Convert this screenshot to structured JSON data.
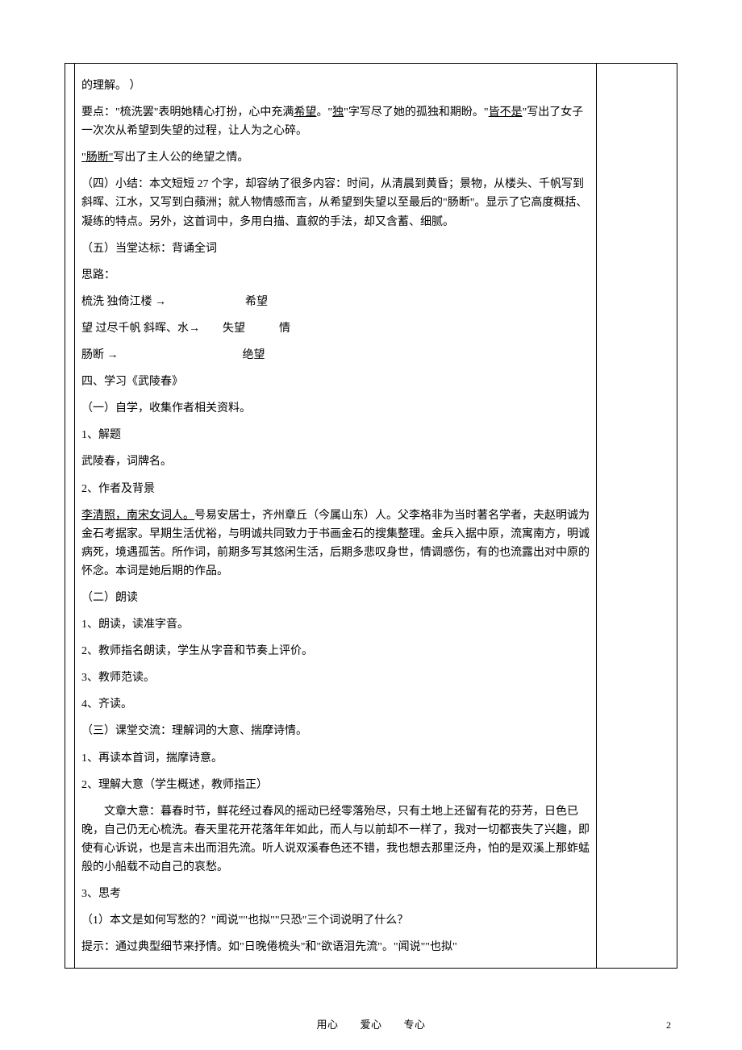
{
  "paragraphs": {
    "p01": "的理解。 ）",
    "p02_a": "要点：\"梳洗罢\"表明她精心打扮，心中充满",
    "p02_u1": "希望",
    "p02_b": "。\"",
    "p02_u2": "独",
    "p02_c": "\"字写尽了她的孤独和期盼。\"",
    "p02_u3": "皆不是",
    "p02_d": "\"写出了女子一次次从希望到失望的过程，让人为之心碎。",
    "p03_u": "\"肠断\"",
    "p03_b": "写出了主人公的绝望之情。",
    "p04": "（四）小结：本文短短 27 个字，却容纳了很多内容：时间，从清晨到黄昏；景物，从楼头、千帆写到斜晖、江水，又写到白蘋洲；就人物情感而言，从希望到失望以至最后的\"肠断\"。显示了它高度概括、凝练的特点。另外，这首词中，多用白描、直叙的手法，却又含蓄、细腻。",
    "p05": "（五）当堂达标：背诵全词",
    "p06": "思路：",
    "p07": "梳洗 独倚江楼 →       希望",
    "p08": "望 过尽千帆 斜晖、水→  失望   情",
    "p09": "肠断 →           绝望",
    "p10": "四、学习《武陵春》",
    "p11": "（一）自学，收集作者相关资料。",
    "p12": "1、解题",
    "p13": "武陵春，词牌名。",
    "p14": "2、作者及背景",
    "p15_u": "李清照，南宋女词人。",
    "p15_b": "号易安居士，齐州章丘（今属山东）人。父李格非为当时著名学者，夫赵明诚为金石考据家。早期生活优裕，与明诚共同致力于书画金石的搜集整理。金兵入据中原，流寓南方，明诚病死，境遇孤苦。所作词，前期多写其悠闲生活，后期多悲叹身世，情调感伤，有的也流露出对中原的怀念。本词是她后期的作品。",
    "p16": "（二）朗读",
    "p17": "1、朗读，读准字音。",
    "p18": "2、教师指名朗读，学生从字音和节奏上评价。",
    "p19": "3、教师范读。",
    "p20": "4、齐读。",
    "p21": "（三）课堂交流：理解词的大意、揣摩诗情。",
    "p22": "1、再读本首词，揣摩诗意。",
    "p23": "2、理解大意（学生概述，教师指正）",
    "p24": "文章大意：暮春时节，鲜花经过春风的摇动已经零落殆尽，只有土地上还留有花的芬芳，日色已晚，自己仍无心梳洗。春天里花开花落年年如此，而人与以前却不一样了，我对一切都丧失了兴趣，即使有心诉说，也是言未出而泪先流。听人说双溪春色还不错，我也想去那里泛舟，怕的是双溪上那蚱蜢般的小船载不动自己的哀愁。",
    "p25": "3、思考",
    "p26": "（1）本文是如何写愁的？\"闻说\"\"也拟\"\"只恐\"三个词说明了什么？",
    "p27": "提示：通过典型细节来抒情。如\"日晚倦梳头\"和\"欲语泪先流\"。\"闻说\"\"也拟\""
  },
  "footer": "用心  爱心  专心",
  "pagenum": "2"
}
